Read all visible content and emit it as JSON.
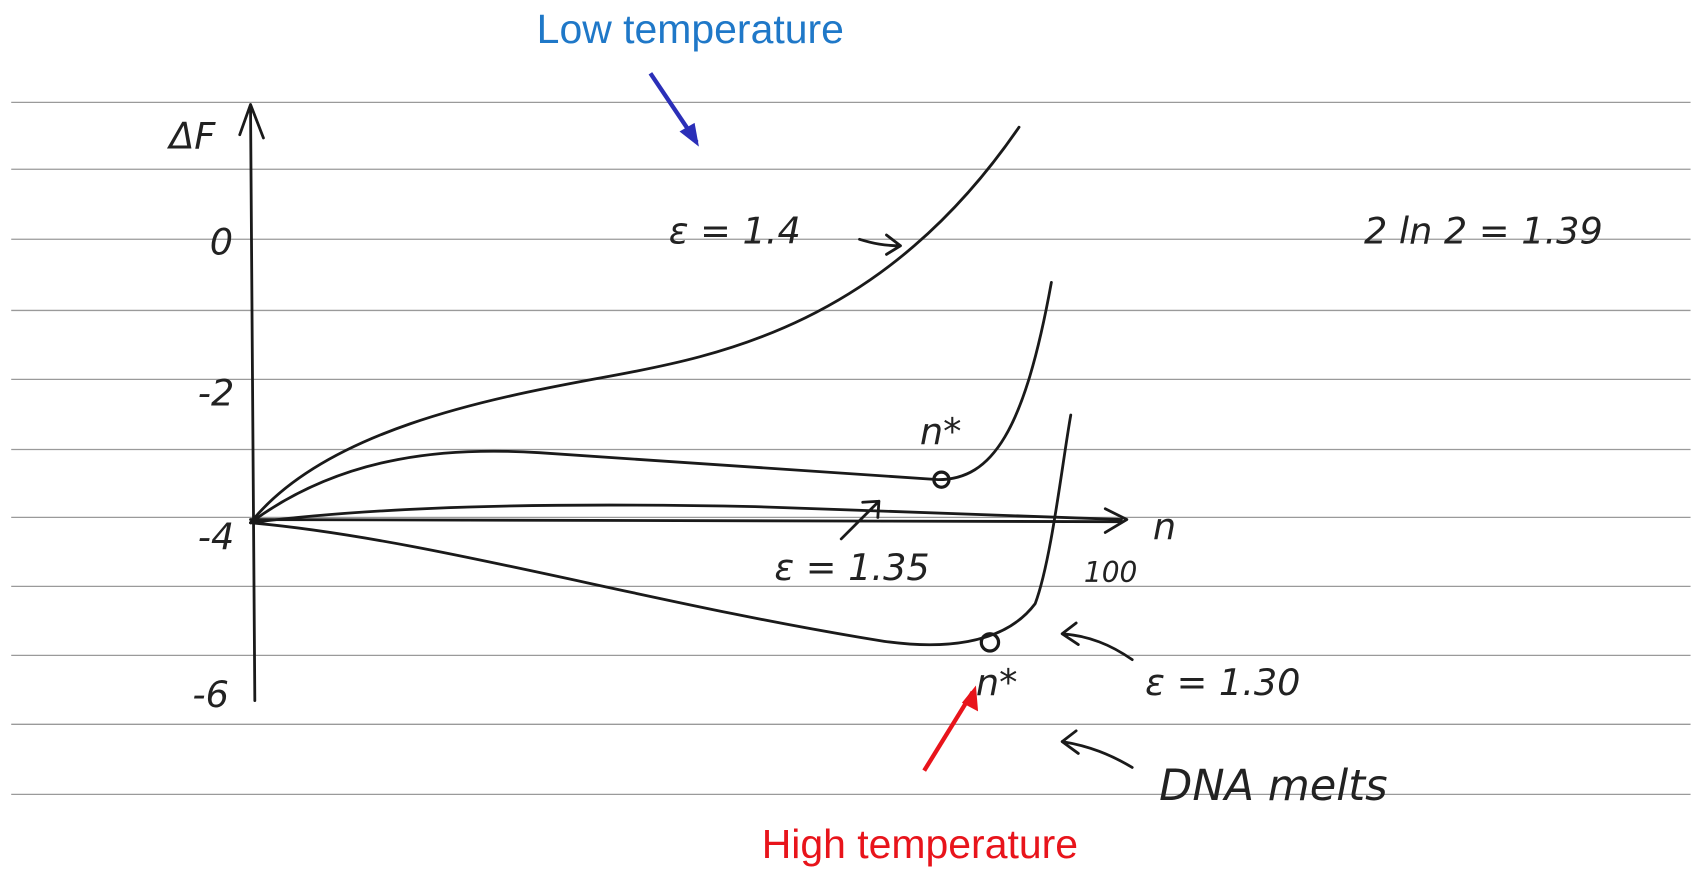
{
  "annotations": {
    "top": "Low temperature",
    "bottom": "High temperature"
  },
  "axes": {
    "y_label": "ΔF",
    "y_ticks": [
      "0",
      "-2",
      "-4",
      "-6"
    ],
    "x_label": "n",
    "x_tick": "100"
  },
  "curves": [
    {
      "label": "ε = 1.4"
    },
    {
      "label": "ε = 1.35",
      "marker": "n*"
    },
    {
      "label": "ε = 1.30",
      "marker": "n*"
    }
  ],
  "notes": [
    "2 ln 2 = 1.39",
    "DNA melts"
  ]
}
